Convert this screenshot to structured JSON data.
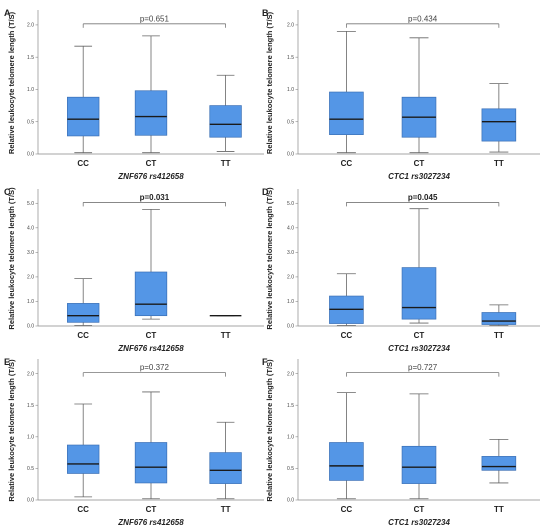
{
  "colors": {
    "box_fill": "#5496e6",
    "box_stroke": "#3a6fb5",
    "line": "#666666",
    "bracket": "#777777"
  },
  "chart_data": [
    {
      "panel": "A",
      "type": "box",
      "ylabel": "Relative leukocyte telomere length (T/S)",
      "xlabel": "ZNF676 rs412658",
      "categories": [
        "CC",
        "CT",
        "TT"
      ],
      "yticks": [
        0,
        0.5,
        1.0,
        1.5,
        2.0
      ],
      "yticklabels": [
        "0.0",
        "0.5",
        "1.0",
        "1.5",
        "2.0"
      ],
      "ylim": [
        0,
        2.2
      ],
      "boxes": [
        {
          "min": 0.02,
          "q1": 0.28,
          "median": 0.54,
          "q3": 0.88,
          "max": 1.67
        },
        {
          "min": 0.02,
          "q1": 0.29,
          "median": 0.58,
          "q3": 0.98,
          "max": 1.83
        },
        {
          "min": 0.04,
          "q1": 0.26,
          "median": 0.46,
          "q3": 0.75,
          "max": 1.22
        }
      ],
      "p_value": "p=0.651",
      "p_bold": false
    },
    {
      "panel": "B",
      "type": "box",
      "ylabel": "Relative leukocyte telomere length (T/S)",
      "xlabel": "CTC1 rs3027234",
      "categories": [
        "CC",
        "CT",
        "TT"
      ],
      "yticks": [
        0,
        0.5,
        1.0,
        1.5,
        2.0
      ],
      "yticklabels": [
        "0.0",
        "0.5",
        "1.0",
        "1.5",
        "2.0"
      ],
      "ylim": [
        0,
        2.2
      ],
      "boxes": [
        {
          "min": 0.02,
          "q1": 0.3,
          "median": 0.54,
          "q3": 0.96,
          "max": 1.9
        },
        {
          "min": 0.02,
          "q1": 0.26,
          "median": 0.57,
          "q3": 0.88,
          "max": 1.8
        },
        {
          "min": 0.03,
          "q1": 0.2,
          "median": 0.5,
          "q3": 0.7,
          "max": 1.09
        }
      ],
      "p_value": "p=0.434",
      "p_bold": false
    },
    {
      "panel": "C",
      "type": "box",
      "ylabel": "Relative leukocyte telomere length (T/S)",
      "xlabel": "ZNF676 rs412658",
      "categories": [
        "CC",
        "CT",
        "TT"
      ],
      "yticks": [
        0,
        1.0,
        2.0,
        3.0,
        4.0,
        5.0
      ],
      "yticklabels": [
        "0.0",
        "1.0",
        "2.0",
        "3.0",
        "4.0",
        "5.0"
      ],
      "ylim": [
        0,
        5.5
      ],
      "boxes": [
        {
          "min": 0.02,
          "q1": 0.15,
          "median": 0.42,
          "q3": 0.92,
          "max": 1.93
        },
        {
          "min": 0.28,
          "q1": 0.42,
          "median": 0.89,
          "q3": 2.2,
          "max": 4.75
        },
        {
          "min": 0.42,
          "q1": 0.42,
          "median": 0.42,
          "q3": 0.42,
          "max": 0.42
        }
      ],
      "p_value": "p=0.031",
      "p_bold": true
    },
    {
      "panel": "D",
      "type": "box",
      "ylabel": "Relative leukocyte telomere length (T/S)",
      "xlabel": "CTC1 rs3027234",
      "categories": [
        "CC",
        "CT",
        "TT"
      ],
      "yticks": [
        0,
        1.0,
        2.0,
        3.0,
        4.0,
        5.0
      ],
      "yticklabels": [
        "0.0",
        "1.0",
        "2.0",
        "3.0",
        "4.0",
        "5.0"
      ],
      "ylim": [
        0,
        5.5
      ],
      "boxes": [
        {
          "min": 0.02,
          "q1": 0.1,
          "median": 0.68,
          "q3": 1.22,
          "max": 2.13
        },
        {
          "min": 0.12,
          "q1": 0.28,
          "median": 0.75,
          "q3": 2.38,
          "max": 4.78
        },
        {
          "min": 0.02,
          "q1": 0.06,
          "median": 0.2,
          "q3": 0.55,
          "max": 0.86
        }
      ],
      "p_value": "p=0.045",
      "p_bold": true
    },
    {
      "panel": "E",
      "type": "box",
      "ylabel": "Relative leukocyte telomere length (T/S)",
      "xlabel": "ZNF676 rs412658",
      "categories": [
        "CC",
        "CT",
        "TT"
      ],
      "yticks": [
        0,
        0.5,
        1.0,
        1.5,
        2.0
      ],
      "yticklabels": [
        "0.0",
        "0.5",
        "1.0",
        "1.5",
        "2.0"
      ],
      "ylim": [
        0,
        2.2
      ],
      "boxes": [
        {
          "min": 0.05,
          "q1": 0.42,
          "median": 0.57,
          "q3": 0.87,
          "max": 1.52
        },
        {
          "min": 0.02,
          "q1": 0.27,
          "median": 0.52,
          "q3": 0.91,
          "max": 1.71
        },
        {
          "min": 0.02,
          "q1": 0.26,
          "median": 0.47,
          "q3": 0.75,
          "max": 1.23
        }
      ],
      "p_value": "p=0.372",
      "p_bold": false
    },
    {
      "panel": "F",
      "type": "box",
      "ylabel": "Relative leukocyte telomere length (T/S)",
      "xlabel": "CTC1 rs3027234",
      "categories": [
        "CC",
        "CT",
        "TT"
      ],
      "yticks": [
        0,
        0.5,
        1.0,
        1.5,
        2.0
      ],
      "yticklabels": [
        "0.0",
        "0.5",
        "1.0",
        "1.5",
        "2.0"
      ],
      "ylim": [
        0,
        2.2
      ],
      "boxes": [
        {
          "min": 0.02,
          "q1": 0.31,
          "median": 0.54,
          "q3": 0.91,
          "max": 1.7
        },
        {
          "min": 0.02,
          "q1": 0.26,
          "median": 0.52,
          "q3": 0.85,
          "max": 1.68
        },
        {
          "min": 0.27,
          "q1": 0.47,
          "median": 0.53,
          "q3": 0.69,
          "max": 0.96
        }
      ],
      "p_value": "p=0.727",
      "p_bold": false
    }
  ]
}
